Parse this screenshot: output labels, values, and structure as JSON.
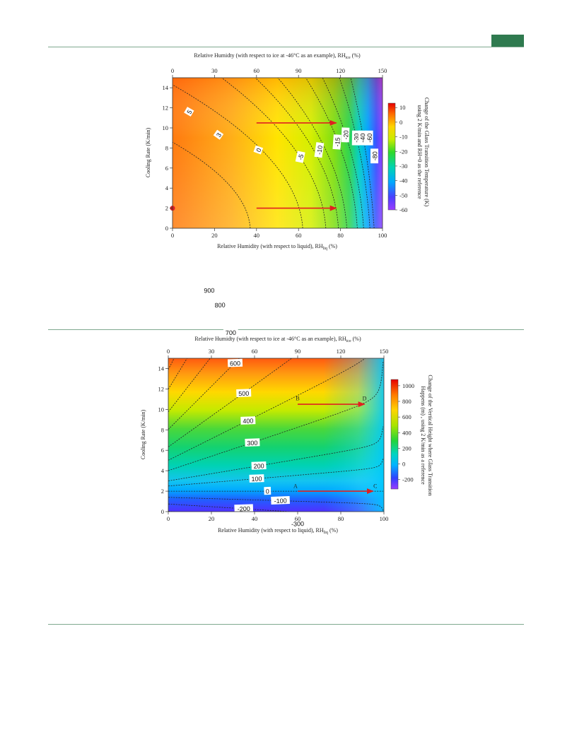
{
  "page": {
    "accent_color": "#2f7a4f",
    "rule_color": "#7fa88f"
  },
  "chart_data": [
    {
      "type": "heatmap",
      "title": "",
      "xlabel": "Relative Humidity (with respect to liquid), RH",
      "xlabel_sub": "liq",
      "xlabel_unit": " (%)",
      "x2label": "Relative Humidty (with respect to ice at -46°C as an example), RH",
      "x2label_sub": "ice",
      "x2label_unit": " (%)",
      "ylabel": "Cooling Rate (K/min)",
      "colorbar_label_1": "Change of the Glass Transition Temperature (K)",
      "colorbar_label_2": "using 2 K/min and RH=0 as the reference",
      "xlim": [
        0,
        100
      ],
      "ylim": [
        0,
        15
      ],
      "x2lim": [
        0,
        150
      ],
      "clim": [
        -60,
        13
      ],
      "xticks": [
        "0",
        "20",
        "40",
        "60",
        "80",
        "100"
      ],
      "x2ticks": [
        "0",
        "30",
        "60",
        "90",
        "120",
        "150"
      ],
      "yticks": [
        "0",
        "2",
        "4",
        "6",
        "8",
        "10",
        "12",
        "14"
      ],
      "cticks": [
        "10",
        "0",
        "-10",
        "-20",
        "-30",
        "-40",
        "-50",
        "-60"
      ],
      "contours": [
        {
          "level": "5",
          "x_at_y0": -12
        },
        {
          "level": "3",
          "x_at_y0": -3
        },
        {
          "level": "0",
          "x_at_y0": 37
        },
        {
          "level": "-5",
          "x_at_y0": 62
        },
        {
          "level": "-10",
          "x_at_y0": 73
        },
        {
          "level": "-15",
          "x_at_y0": 79
        },
        {
          "level": "-20",
          "x_at_y0": 83
        },
        {
          "level": "-30",
          "x_at_y0": 88
        },
        {
          "level": "-40",
          "x_at_y0": 91
        },
        {
          "level": "-60",
          "x_at_y0": 94
        },
        {
          "level": "-80",
          "x_at_y0": 96
        }
      ],
      "arrows": [
        {
          "from": [
            40,
            10.5
          ],
          "to": [
            78,
            10.5
          ]
        },
        {
          "from": [
            40,
            2
          ],
          "to": [
            78,
            2
          ]
        }
      ],
      "reference_point": {
        "x": 0,
        "y": 2
      }
    },
    {
      "type": "heatmap",
      "title": "",
      "xlabel": "Relative Humidity (with respect to liquid), RH",
      "xlabel_sub": "liq",
      "xlabel_unit": " (%)",
      "x2label": "Relative Humidty (with respect to ice at -46°C as an example), RH",
      "x2label_sub": "ice",
      "x2label_unit": " (%)",
      "ylabel": "Cooling Rate (K/min)",
      "colorbar_label_1": "Change of the Vertical Height where Glass Transition",
      "colorbar_label_2": "Happens (m) , using 2 K/min as a reference",
      "xlim": [
        0,
        100
      ],
      "ylim": [
        0,
        15
      ],
      "x2lim": [
        0,
        150
      ],
      "clim": [
        -320,
        1080
      ],
      "xticks": [
        "0",
        "20",
        "40",
        "60",
        "80",
        "100"
      ],
      "x2ticks": [
        "0",
        "30",
        "60",
        "90",
        "120",
        "150"
      ],
      "yticks": [
        "0",
        "2",
        "4",
        "6",
        "8",
        "10",
        "12",
        "14"
      ],
      "cticks": [
        "1000",
        "800",
        "600",
        "400",
        "200",
        "0",
        "-200"
      ],
      "contours": [
        {
          "level": "900",
          "y_base": 13.8,
          "label_x": 19
        },
        {
          "level": "800",
          "y_base": 11.9,
          "label_x": 24
        },
        {
          "level": "700",
          "y_base": 9.7,
          "label_x": 29
        },
        {
          "level": "600",
          "y_base": 8.0,
          "label_x": 31
        },
        {
          "level": "500",
          "y_base": 6.3,
          "label_x": 35
        },
        {
          "level": "400",
          "y_base": 5.0,
          "label_x": 37
        },
        {
          "level": "300",
          "y_base": 4.0,
          "label_x": 39
        },
        {
          "level": "200",
          "y_base": 3.0,
          "label_x": 42
        },
        {
          "level": "100",
          "y_base": 2.5,
          "label_x": 41
        },
        {
          "level": "0",
          "y_base": 2.0,
          "label_x": 46
        },
        {
          "level": "-100",
          "y_base": 1.4,
          "label_x": 52
        },
        {
          "level": "-200",
          "y_base": 0.75,
          "label_x": 35
        },
        {
          "level": "-300",
          "y_base": 0.05,
          "label_x": 60
        }
      ],
      "arrows": [
        {
          "from": [
            60,
            10.5
          ],
          "to": [
            91,
            10.5
          ]
        },
        {
          "from": [
            60,
            2
          ],
          "to": [
            95,
            2
          ]
        }
      ],
      "points": [
        {
          "label": "A",
          "x": 59,
          "y": 2.3
        },
        {
          "label": "B",
          "x": 60,
          "y": 10.9
        },
        {
          "label": "C",
          "x": 96,
          "y": 2.3
        },
        {
          "label": "D",
          "x": 91,
          "y": 10.9
        }
      ]
    }
  ]
}
